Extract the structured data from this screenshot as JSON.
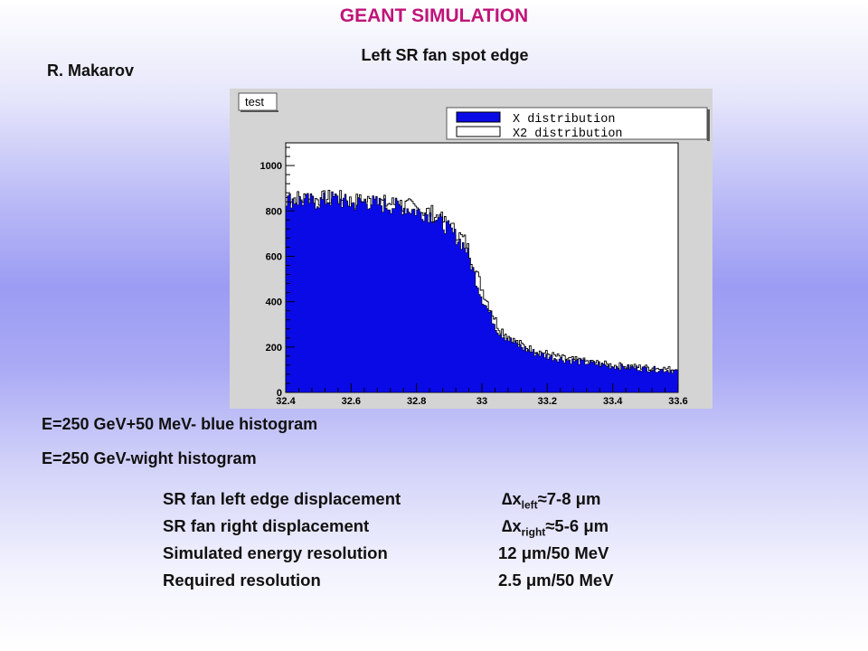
{
  "page": {
    "title": "GEANT SIMULATION",
    "subtitle": "Left SR fan spot edge",
    "author": "R. Makarov"
  },
  "legend_notes": [
    "E=250 GeV+50 MeV- blue histogram",
    "E=250 GeV-wight histogram"
  ],
  "info": {
    "left_edge": {
      "label": "SR fan left edge displacement",
      "symbol": "∆x",
      "sub": "left",
      "value": "≈7-8 μm"
    },
    "right_edge": {
      "label": "SR fan right displacement",
      "symbol": "∆x",
      "sub": "right",
      "value": "≈5-6 μm"
    },
    "simulated": {
      "label": "Simulated energy resolution",
      "value": "12 μm/50 MeV"
    },
    "required": {
      "label": "Required resolution",
      "value": "2.5 μm/50 MeV"
    }
  },
  "chart_data": {
    "type": "bar",
    "title": "test",
    "xlabel": "",
    "ylabel": "",
    "xlim": [
      32.4,
      33.6
    ],
    "ylim": [
      0,
      1100
    ],
    "xticks": [
      "32.4",
      "32.6",
      "32.8",
      "33",
      "33.2",
      "33.4",
      "33.6"
    ],
    "yticks": [
      "0",
      "200",
      "400",
      "600",
      "800",
      "1000"
    ],
    "grid": false,
    "legend_position": "top-right",
    "colors": {
      "blue_fill": "#0a0ae6",
      "white_outline": "#ffffff"
    },
    "series": [
      {
        "name": "X distribution",
        "x": [
          32.4,
          32.45,
          32.5,
          32.55,
          32.6,
          32.65,
          32.7,
          32.75,
          32.8,
          32.85,
          32.9,
          32.95,
          33.0,
          33.05,
          33.1,
          33.15,
          33.2,
          33.25,
          33.3,
          33.35,
          33.4,
          33.45,
          33.5,
          33.55,
          33.6
        ],
        "values": [
          850,
          845,
          840,
          855,
          830,
          840,
          825,
          820,
          800,
          780,
          720,
          640,
          420,
          270,
          215,
          180,
          160,
          145,
          135,
          125,
          115,
          110,
          105,
          100,
          95
        ]
      },
      {
        "name": "X2 distribution",
        "x": [
          32.4,
          32.45,
          32.5,
          32.55,
          32.6,
          32.65,
          32.7,
          32.75,
          32.8,
          32.85,
          32.9,
          32.95,
          33.0,
          33.05,
          33.1,
          33.15,
          33.2,
          33.25,
          33.3,
          33.35,
          33.4,
          33.45,
          33.5,
          33.55,
          33.6
        ],
        "values": [
          860,
          855,
          850,
          860,
          840,
          845,
          835,
          830,
          810,
          790,
          735,
          665,
          460,
          290,
          225,
          190,
          170,
          150,
          140,
          130,
          120,
          115,
          110,
          105,
          100
        ]
      }
    ]
  }
}
